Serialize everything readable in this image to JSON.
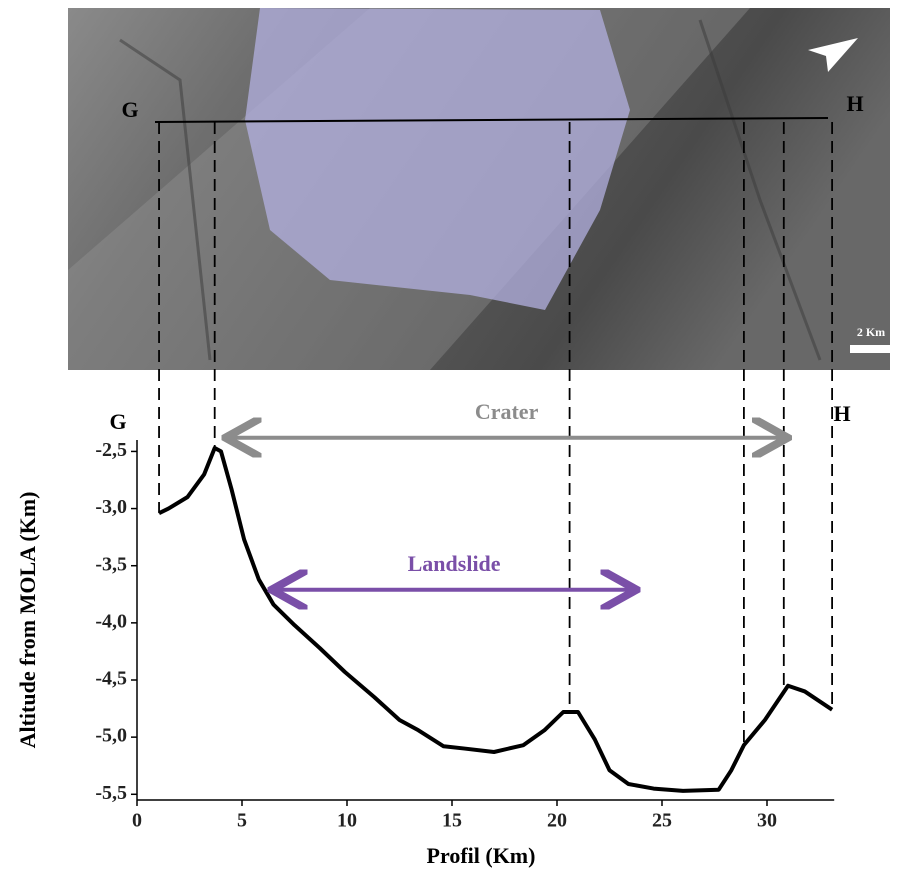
{
  "image": {
    "left_label": "G",
    "right_label": "H",
    "scale_label": "2 Km"
  },
  "chart_data": {
    "type": "line",
    "x_label": "Profil (Km)",
    "y_label": "Altitude from MOLA (Km)",
    "start_label": "G",
    "end_label": "H",
    "xlim": [
      0,
      33.2
    ],
    "ylim": [
      -5.55,
      -2.4
    ],
    "xticks": [
      0,
      5,
      10,
      15,
      20,
      25,
      30
    ],
    "yticks": [
      {
        "value": -2.5,
        "label": "-2,5"
      },
      {
        "value": -3.0,
        "label": "-3,0"
      },
      {
        "value": -3.5,
        "label": "-3,5"
      },
      {
        "value": -4.0,
        "label": "-4,0"
      },
      {
        "value": -4.5,
        "label": "-4,5"
      },
      {
        "value": -5.0,
        "label": "-5,0"
      },
      {
        "value": -5.5,
        "label": "-5,5"
      }
    ],
    "series": [
      {
        "name": "Profile",
        "color": "#000000",
        "x": [
          1.05,
          1.5,
          2.4,
          3.2,
          3.7,
          4.0,
          4.5,
          5.1,
          5.8,
          6.5,
          7.5,
          8.7,
          9.9,
          11.3,
          12.5,
          13.4,
          14.6,
          15.6,
          17.0,
          18.4,
          19.4,
          20.3,
          21.0,
          21.8,
          22.5,
          23.4,
          24.6,
          26.0,
          27.7,
          28.3,
          28.9,
          29.9,
          31.0,
          31.8,
          33.1
        ],
        "values": [
          -3.04,
          -3.0,
          -2.9,
          -2.7,
          -2.47,
          -2.5,
          -2.83,
          -3.27,
          -3.62,
          -3.84,
          -4.02,
          -4.22,
          -4.43,
          -4.65,
          -4.85,
          -4.94,
          -5.08,
          -5.1,
          -5.13,
          -5.07,
          -4.94,
          -4.78,
          -4.78,
          -5.02,
          -5.29,
          -5.41,
          -5.45,
          -5.47,
          -5.46,
          -5.29,
          -5.07,
          -4.85,
          -4.55,
          -4.6,
          -4.76
        ]
      }
    ],
    "profile_markers": [
      1.05,
      3.7,
      20.6,
      28.9,
      30.8,
      33.1
    ],
    "annotations": [
      {
        "text": "Crater",
        "color": "#8c8c8c",
        "x": [
          4.4,
          30.8
        ],
        "y": -2.38
      },
      {
        "text": "Landslide",
        "color": "#7a4fa8",
        "x": [
          6.6,
          23.6
        ],
        "y": -3.71
      }
    ]
  }
}
